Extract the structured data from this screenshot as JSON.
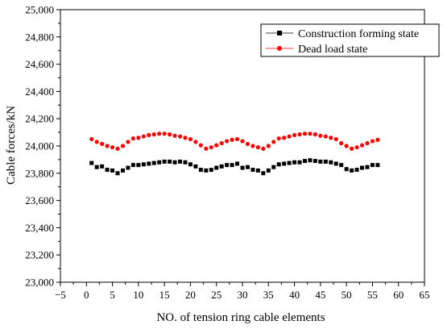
{
  "chart_data": {
    "type": "scatter",
    "xlabel": "NO. of tension ring cable elements",
    "ylabel": "Cable forces/kN",
    "xlim": [
      -5,
      65
    ],
    "ylim": [
      23000,
      25000
    ],
    "x_ticks": [
      -5,
      0,
      5,
      10,
      15,
      20,
      25,
      30,
      35,
      40,
      45,
      50,
      55,
      60,
      65
    ],
    "x_tick_labels": [
      "−5",
      "0",
      "5",
      "10",
      "15",
      "20",
      "25",
      "30",
      "35",
      "40",
      "45",
      "50",
      "55",
      "60",
      "65"
    ],
    "y_ticks": [
      23000,
      23200,
      23400,
      23600,
      23800,
      24000,
      24200,
      24400,
      24600,
      24800,
      25000
    ],
    "y_tick_labels": [
      "23,000",
      "23,200",
      "23,400",
      "23,600",
      "23,800",
      "24,000",
      "24,200",
      "24,400",
      "24,600",
      "24,800",
      "25,000"
    ],
    "grid": false,
    "legend_position": "top-right",
    "series": [
      {
        "name": "Construction forming state",
        "color": "#000000",
        "marker": "square",
        "x": [
          1,
          2,
          3,
          4,
          5,
          6,
          7,
          8,
          9,
          10,
          11,
          12,
          13,
          14,
          15,
          16,
          17,
          18,
          19,
          20,
          21,
          22,
          23,
          24,
          25,
          26,
          27,
          28,
          29,
          30,
          31,
          32,
          33,
          34,
          35,
          36,
          37,
          38,
          39,
          40,
          41,
          42,
          43,
          44,
          45,
          46,
          47,
          48,
          49,
          50,
          51,
          52,
          53,
          54,
          55,
          56
        ],
        "values": [
          23875,
          23845,
          23850,
          23825,
          23820,
          23800,
          23820,
          23840,
          23860,
          23860,
          23865,
          23870,
          23875,
          23880,
          23885,
          23885,
          23880,
          23885,
          23880,
          23865,
          23850,
          23825,
          23820,
          23825,
          23840,
          23850,
          23860,
          23860,
          23870,
          23840,
          23845,
          23825,
          23820,
          23800,
          23820,
          23845,
          23865,
          23870,
          23875,
          23880,
          23880,
          23890,
          23895,
          23890,
          23885,
          23885,
          23880,
          23870,
          23860,
          23830,
          23820,
          23825,
          23840,
          23845,
          23860,
          23860
        ]
      },
      {
        "name": "Dead load state",
        "color": "#ff0000",
        "marker": "circle",
        "x": [
          1,
          2,
          3,
          4,
          5,
          6,
          7,
          8,
          9,
          10,
          11,
          12,
          13,
          14,
          15,
          16,
          17,
          18,
          19,
          20,
          21,
          22,
          23,
          24,
          25,
          26,
          27,
          28,
          29,
          30,
          31,
          32,
          33,
          34,
          35,
          36,
          37,
          38,
          39,
          40,
          41,
          42,
          43,
          44,
          45,
          46,
          47,
          48,
          49,
          50,
          51,
          52,
          53,
          54,
          55,
          56
        ],
        "values": [
          24050,
          24030,
          24015,
          24000,
          23990,
          23980,
          24000,
          24030,
          24055,
          24060,
          24070,
          24080,
          24085,
          24090,
          24090,
          24085,
          24075,
          24070,
          24060,
          24050,
          24030,
          24005,
          23980,
          23990,
          24005,
          24020,
          24035,
          24045,
          24050,
          24035,
          24015,
          24000,
          23990,
          23980,
          24000,
          24030,
          24055,
          24060,
          24070,
          24080,
          24085,
          24090,
          24090,
          24085,
          24075,
          24070,
          24060,
          24050,
          24020,
          24000,
          23980,
          23990,
          24005,
          24020,
          24035,
          24045
        ]
      }
    ]
  }
}
